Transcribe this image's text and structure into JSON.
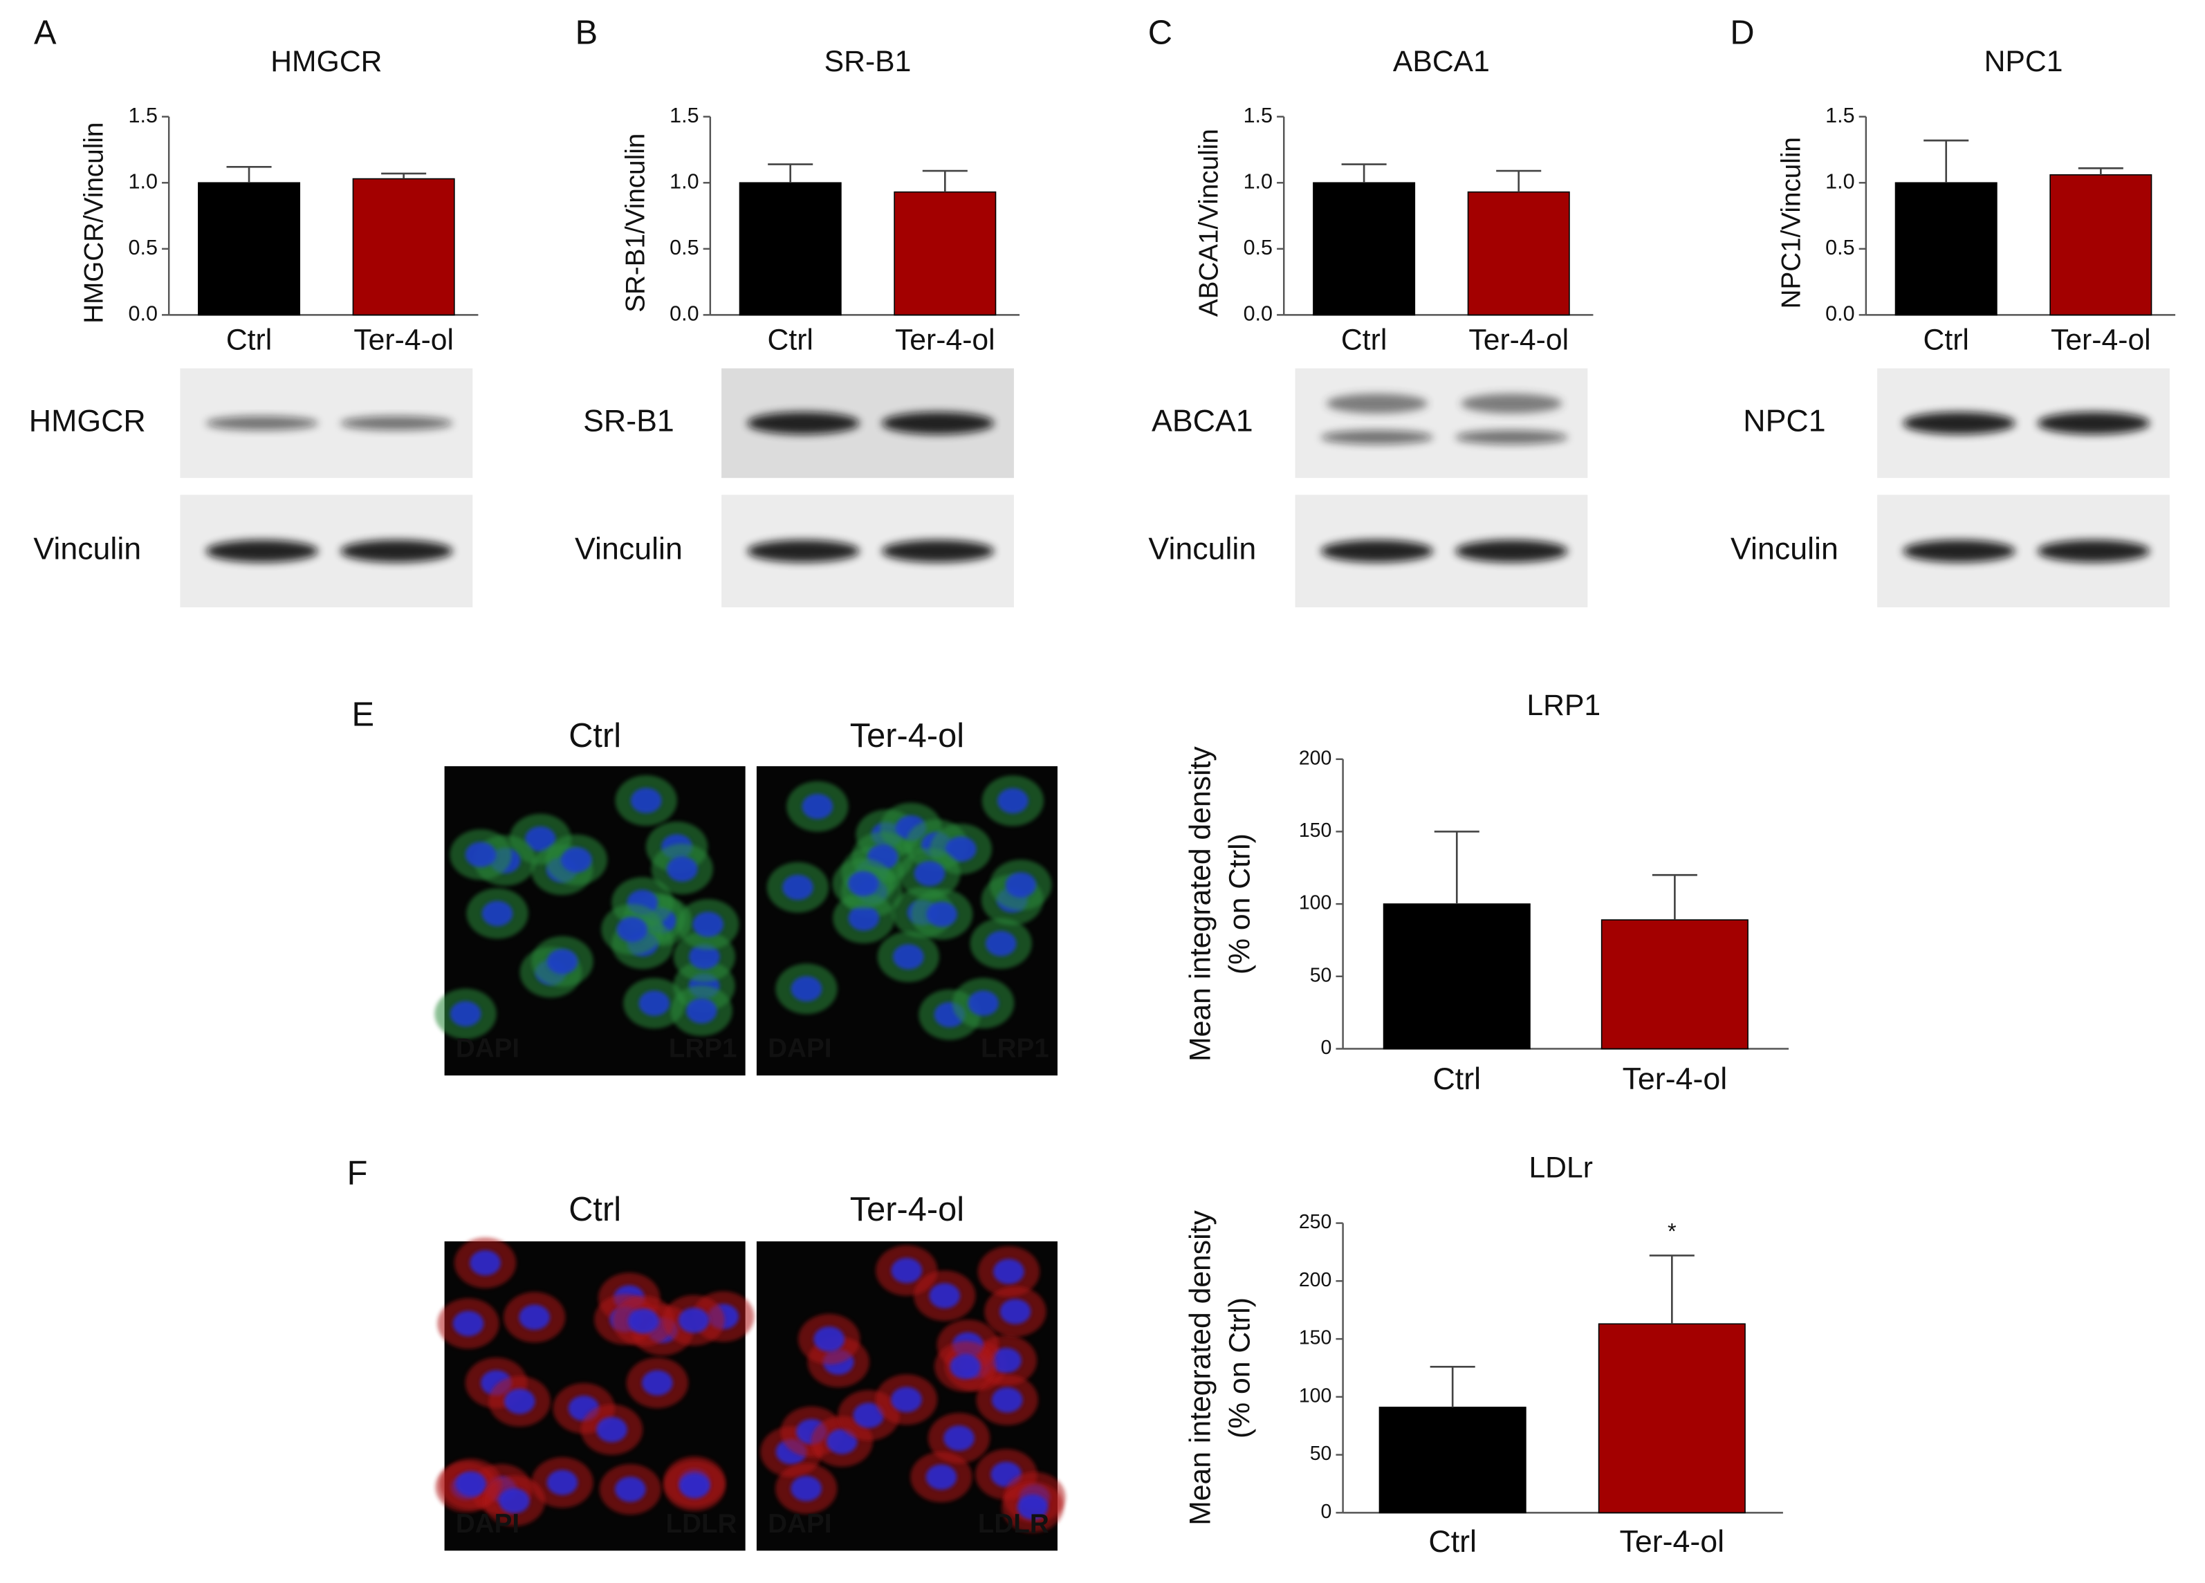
{
  "chart_data": [
    {
      "type": "bar",
      "panel": "A",
      "title": "HMGCR",
      "ylabel": "HMGCR/Vinculin",
      "categories": [
        "Ctrl",
        "Ter-4-ol"
      ],
      "values": [
        1.0,
        1.03
      ],
      "errors": [
        0.12,
        0.04
      ],
      "colors": [
        "#000000",
        "#a30000"
      ],
      "ylim": [
        0,
        1.5
      ],
      "yticks": [
        {
          "value": 0,
          "label": "0.0"
        },
        0.5,
        {
          "value": 1,
          "label": "1.0"
        },
        1.5
      ],
      "blot_labels": [
        "HMGCR",
        "Vinculin"
      ]
    },
    {
      "type": "bar",
      "panel": "B",
      "title": "SR-B1",
      "ylabel": "SR-B1/Vinculin",
      "categories": [
        "Ctrl",
        "Ter-4-ol"
      ],
      "values": [
        1.0,
        0.93
      ],
      "errors": [
        0.14,
        0.16
      ],
      "colors": [
        "#000000",
        "#a30000"
      ],
      "ylim": [
        0,
        1.5
      ],
      "yticks": [
        {
          "value": 0,
          "label": "0.0"
        },
        0.5,
        {
          "value": 1,
          "label": "1.0"
        },
        1.5
      ],
      "blot_labels": [
        "SR-B1",
        "Vinculin"
      ]
    },
    {
      "type": "bar",
      "panel": "C",
      "title": "ABCA1",
      "ylabel": "ABCA1/Vinculin",
      "categories": [
        "Ctrl",
        "Ter-4-ol"
      ],
      "values": [
        1.0,
        0.93
      ],
      "errors": [
        0.14,
        0.16
      ],
      "colors": [
        "#000000",
        "#a30000"
      ],
      "ylim": [
        0,
        1.5
      ],
      "yticks": [
        {
          "value": 0,
          "label": "0.0"
        },
        0.5,
        {
          "value": 1,
          "label": "1.0"
        },
        1.5
      ],
      "blot_labels": [
        "ABCA1",
        "Vinculin"
      ]
    },
    {
      "type": "bar",
      "panel": "D",
      "title": "NPC1",
      "ylabel": "NPC1/Vinculin",
      "categories": [
        "Ctrl",
        "Ter-4-ol"
      ],
      "values": [
        1.0,
        1.06
      ],
      "errors": [
        0.32,
        0.05
      ],
      "colors": [
        "#000000",
        "#a30000"
      ],
      "ylim": [
        0,
        1.5
      ],
      "yticks": [
        {
          "value": 0,
          "label": "0.0"
        },
        0.5,
        {
          "value": 1,
          "label": "1.0"
        },
        1.5
      ],
      "blot_labels": [
        "NPC1",
        "Vinculin"
      ]
    },
    {
      "type": "bar",
      "panel": "E",
      "title": "LRP1",
      "ylabel": [
        "Mean integrated density",
        "(% on Ctrl)"
      ],
      "categories": [
        "Ctrl",
        "Ter-4-ol"
      ],
      "values": [
        100,
        89
      ],
      "errors": [
        50,
        31
      ],
      "colors": [
        "#000000",
        "#a30000"
      ],
      "ylim": [
        0,
        200
      ],
      "yticks": [
        0,
        50,
        100,
        150,
        200
      ],
      "image_titles": [
        "Ctrl",
        "Ter-4-ol"
      ],
      "stain_labels": [
        "DAPI",
        "LRP1"
      ]
    },
    {
      "type": "bar",
      "panel": "F",
      "title": "LDLr",
      "ylabel": [
        "Mean integrated density",
        "(% on Ctrl)"
      ],
      "categories": [
        "Ctrl",
        "Ter-4-ol"
      ],
      "values": [
        91,
        163
      ],
      "errors": [
        35,
        59
      ],
      "colors": [
        "#000000",
        "#a30000"
      ],
      "ylim": [
        0,
        250
      ],
      "yticks": [
        0,
        50,
        100,
        150,
        200,
        250
      ],
      "image_titles": [
        "Ctrl",
        "Ter-4-ol"
      ],
      "stain_labels": [
        "DAPI",
        "LDLR"
      ],
      "annotations": [
        "*"
      ]
    }
  ]
}
